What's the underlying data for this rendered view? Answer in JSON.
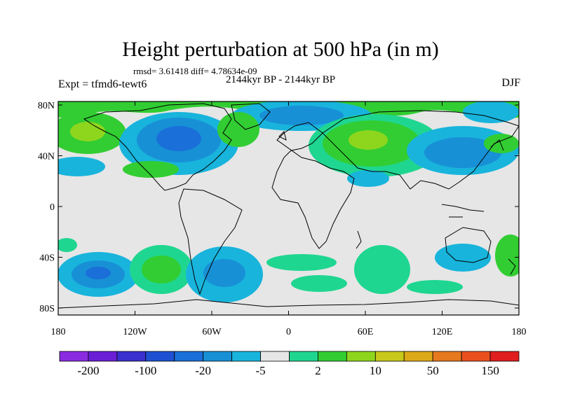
{
  "title": "Height perturbation at 500 hPa (in m)",
  "stats": "rmsd= 3.61418 diff= 4.78634e-09",
  "period": "2144kyr BP - 2144kyr BP",
  "experiment": "Expt = tfmd6-tewt6",
  "season": "DJF",
  "map": {
    "x_ticks": [
      "180",
      "120W",
      "60W",
      "0",
      "60E",
      "120E",
      "180"
    ],
    "y_ticks": [
      "80N",
      "40N",
      "0",
      "40S",
      "80S"
    ],
    "background_color": "#e6e6e6",
    "coast_color": "#000000"
  },
  "colorbar": {
    "colors": [
      "#8a2be2",
      "#6a1fd6",
      "#3a2fcf",
      "#1e50d2",
      "#1a6fd8",
      "#1890d6",
      "#18b4dc",
      "#e6e6e6",
      "#1fd690",
      "#32cd32",
      "#8ed61e",
      "#c8c81a",
      "#dcaa18",
      "#e6781e",
      "#e8501e",
      "#e01e1e"
    ],
    "labels": [
      "-200",
      "-100",
      "-20",
      "-5",
      "2",
      "10",
      "50",
      "150"
    ]
  }
}
